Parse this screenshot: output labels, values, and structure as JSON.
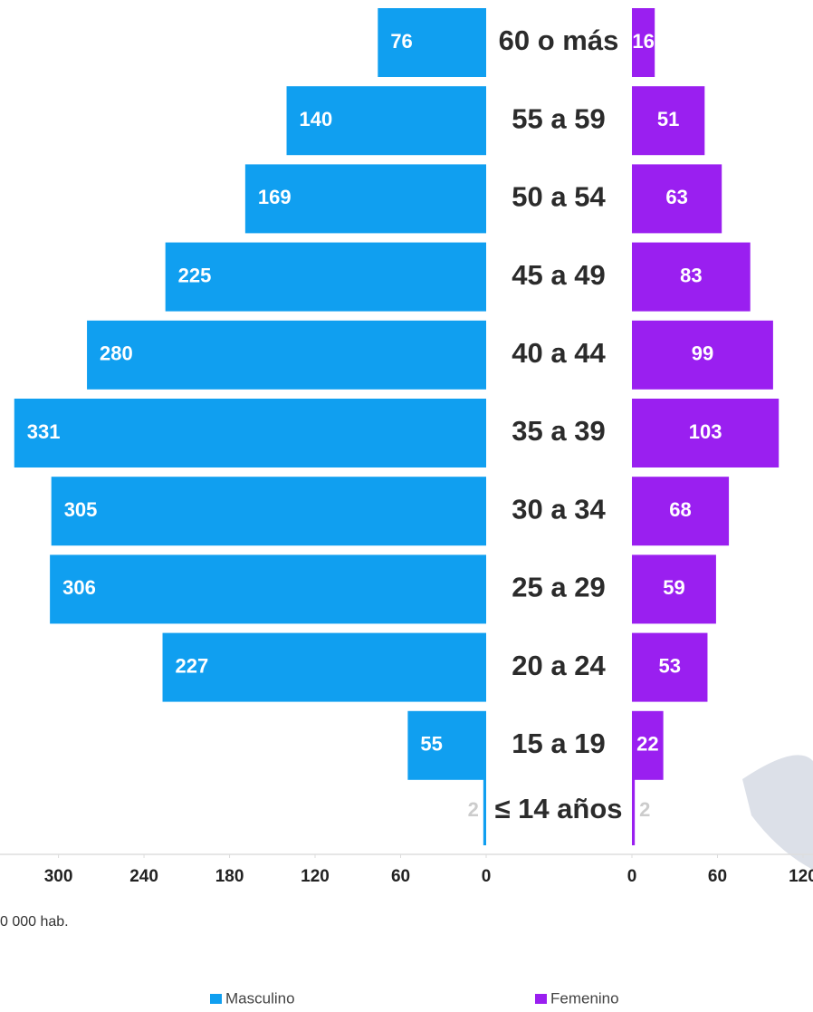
{
  "chart_data": {
    "type": "pyramid",
    "categories": [
      "60 o más",
      "55 a 59",
      "50 a 54",
      "45 a 49",
      "40 a 44",
      "35 a 39",
      "30 a 34",
      "25 a 29",
      "20 a 24",
      "15 a 19",
      "≤ 14 años"
    ],
    "series": [
      {
        "name": "Masculino",
        "color": "#109ff0",
        "values": [
          76,
          140,
          169,
          225,
          280,
          331,
          305,
          306,
          227,
          55,
          2
        ],
        "xlim": [
          0,
          341
        ],
        "xticks": [
          0,
          60,
          120,
          180,
          240,
          300
        ]
      },
      {
        "name": "Femenino",
        "color": "#9a1ff0",
        "values": [
          16,
          51,
          63,
          83,
          99,
          103,
          68,
          59,
          53,
          22,
          2
        ],
        "xlim": [
          0,
          127
        ],
        "xticks": [
          0,
          60,
          120
        ]
      }
    ],
    "note": "0 000 hab."
  }
}
